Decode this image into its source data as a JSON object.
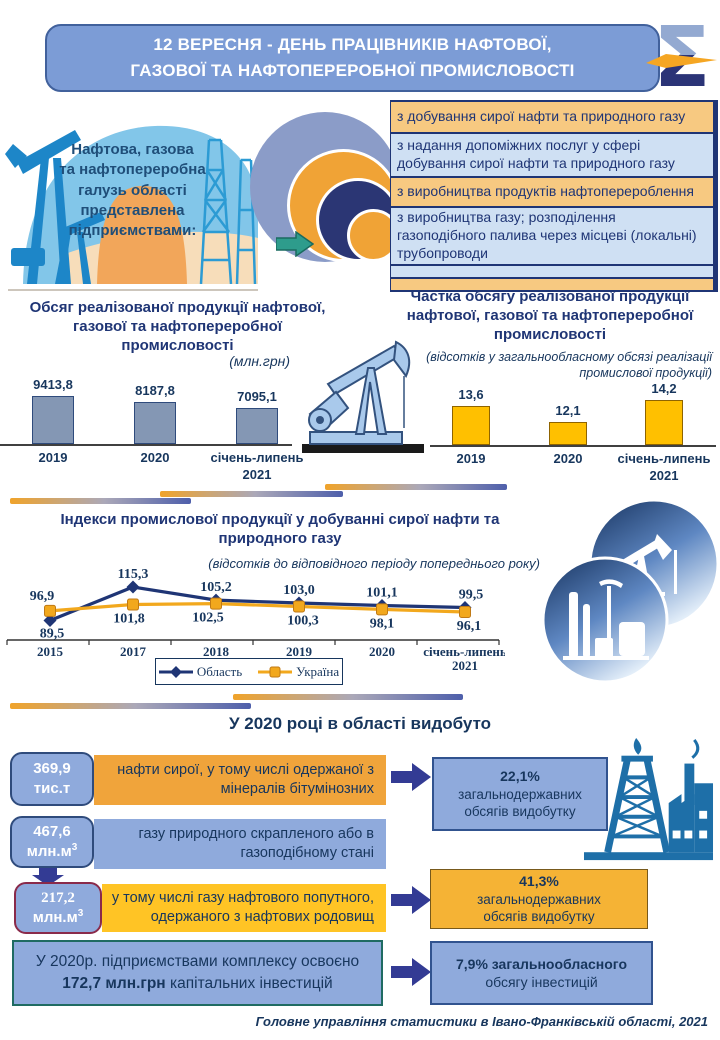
{
  "header": {
    "title_line1": "12 ВЕРЕСНЯ - ДЕНЬ ПРАЦІВНИКІВ НАФТОВОЇ,",
    "title_line2": "ГАЗОВОЇ ТА НАФТОПЕРЕРОБНОЇ ПРОМИСЛОВОСТІ"
  },
  "intro": {
    "caption": "Нафтова, газова\nта нафтопереробна\nгалузь області\nпредставлена\nпідприємствами:",
    "items": [
      {
        "text": "з добування сирої нафти та природного газу"
      },
      {
        "text": "з надання допоміжних послуг у сфері добування сирої нафти та природного газу"
      },
      {
        "text": "з виробництва продуктів нафтоперероблення"
      },
      {
        "text": "з виробництва газу; розподілення газоподібного палива через місцеві (локальні) трубопроводи"
      }
    ]
  },
  "chart_data": [
    {
      "type": "bar",
      "title": "Обсяг реалізованої продукції нафтової, газової та нафтопереробної промисловості",
      "unit_label": "(млн.грн)",
      "categories": [
        "2019",
        "2020",
        "січень-липень\n2021"
      ],
      "values": [
        9413.8,
        8187.8,
        7095.1
      ],
      "value_labels": [
        "9413,8",
        "8187,8",
        "7095,1"
      ],
      "bar_color": "#8497B4",
      "bar_border": "#2F4B7C",
      "ylim": [
        0,
        9413.8
      ],
      "grid": false
    },
    {
      "type": "bar",
      "title": "Частка обсягу реалізованої продукції нафтової, газової та нафтопереробної промисловості",
      "subtitle": "(відсотків у загальнообласному обсязі реалізації промислової продукції)",
      "categories": [
        "2019",
        "2020",
        "січень-липень\n2021"
      ],
      "values": [
        13.6,
        12.1,
        14.2
      ],
      "value_labels": [
        "13,6",
        "12,1",
        "14,2"
      ],
      "bar_color": "#FFC000",
      "bar_border": "#8F6400",
      "grid": false
    },
    {
      "type": "line",
      "title": "Індекси промислової продукції у добуванні сирої нафти та природного газу",
      "subtitle": "(відсотків до відповідного періоду попереднього року)",
      "categories": [
        "2015",
        "2017",
        "2018",
        "2019",
        "2020",
        "січень-липень\n2021"
      ],
      "series": [
        {
          "name": "Область",
          "color": "#1F3575",
          "marker": "diamond",
          "values": [
            89.5,
            115.3,
            105.2,
            103.0,
            101.1,
            99.5
          ],
          "value_labels": [
            "89,5",
            "115,3",
            "105,2",
            "103,0",
            "101,1",
            "99,5"
          ]
        },
        {
          "name": "Україна",
          "color": "#F2A81D",
          "marker": "square",
          "values": [
            96.9,
            101.8,
            102.5,
            100.3,
            98.1,
            96.1
          ],
          "value_labels": [
            "96,9",
            "101,8",
            "102,5",
            "100,3",
            "98,1",
            "96,1"
          ]
        }
      ],
      "legend_position": "bottom"
    }
  ],
  "production": {
    "title": "У 2020 році в області видобуто",
    "rows": [
      {
        "value": "369,9",
        "unit": "тис.т",
        "unit_sup": "",
        "text": "нафти сирої, у тому числі одержаної з мінералів бітумінозних"
      },
      {
        "value": "467,6",
        "unit": "млн.м",
        "unit_sup": "3",
        "text": "газу природного скрапленого або в газоподібному стані"
      },
      {
        "value": "217,2",
        "unit": "млн.м",
        "unit_sup": "3",
        "text": "у тому числі газу нафтового попутного, одержаного з нафтових родовищ"
      }
    ],
    "results": [
      {
        "value": "22,1%",
        "text": "загальнодержавних\nобсягів видобутку"
      },
      {
        "value": "41,3%",
        "text": "загальнодержавних\nобсягів видобутку"
      }
    ],
    "investment": {
      "prefix": "У 2020р. підприємствами комплексу  освоєно",
      "bold": "172,7 млн.грн",
      "suffix": "капітальних інвестицій",
      "result_bold": "7,9% загальнообласного",
      "result_rest": "обсягу інвестицій"
    }
  },
  "footer": {
    "text": "Головне управління статистики  в Івано-Франківській області, 2021"
  },
  "icons": {
    "logo": "sigma-statistics-logo",
    "intro_arrow": "green-right-block-arrow",
    "flow_arrow": "navy-right-block-arrow",
    "down_arrow": "navy-down-block-arrow",
    "rig": "drilling-rig-and-factory-icon",
    "pumpjack": "pumpjack-icon",
    "refinery": "refinery-circles-icon"
  },
  "colors": {
    "navy_text": "#17365D",
    "header_blue": "#7C9CD6",
    "item_orange": "#F7C981",
    "item_blue": "#CFE0F3",
    "badge_blue": "#8FAADC",
    "row_orange": "#F0A43B",
    "row_yellow": "#FFC425",
    "bar_gray_blue": "#8497B4",
    "bar_yellow": "#FFC000",
    "line_oblast": "#1F3575",
    "line_ukraine": "#F2A81D",
    "arrow_navy": "#333B94",
    "green_arrow": "#2E9C8C",
    "icon_blue": "#1E6FA8",
    "maroon_border": "#8A2A4A"
  }
}
